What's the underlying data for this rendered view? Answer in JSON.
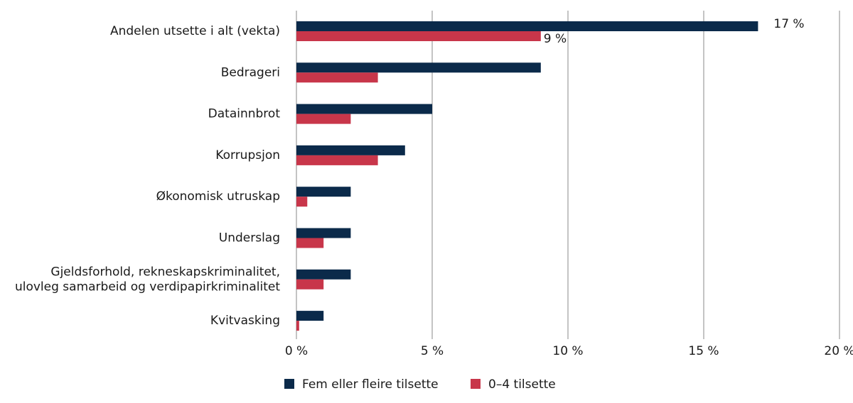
{
  "chart_data": {
    "type": "hbar",
    "categories": [
      "Andelen utsette i alt (vekta)",
      "Bedrageri",
      "Datainnbrot",
      "Korrupsjon",
      "Økonomisk utruskap",
      "Underslag",
      "Gjeldsforhold, rekneskapskriminalitet,\nulovleg samarbeid og verdipapirkriminalitet",
      "Kvitvasking"
    ],
    "series": [
      {
        "name": "Fem eller fleire tilsette",
        "color": "#0b2a4a",
        "values": [
          17,
          9,
          5,
          4,
          2,
          2,
          2,
          1
        ],
        "value_labels": [
          "17 %",
          null,
          null,
          null,
          null,
          null,
          null,
          null
        ]
      },
      {
        "name": "0–4 tilsette",
        "color": "#c8364a",
        "values": [
          9,
          3,
          2,
          3,
          0.4,
          1,
          1,
          0.1
        ],
        "value_labels": [
          "9 %",
          null,
          null,
          null,
          null,
          null,
          null,
          null
        ]
      }
    ],
    "xlim": [
      0,
      20
    ],
    "xticks": [
      {
        "value": 0,
        "label": "0 %"
      },
      {
        "value": 5,
        "label": "5 %"
      },
      {
        "value": 10,
        "label": "10 %"
      },
      {
        "value": 15,
        "label": "15 %"
      },
      {
        "value": 20,
        "label": "20 %"
      }
    ],
    "grid": true
  }
}
